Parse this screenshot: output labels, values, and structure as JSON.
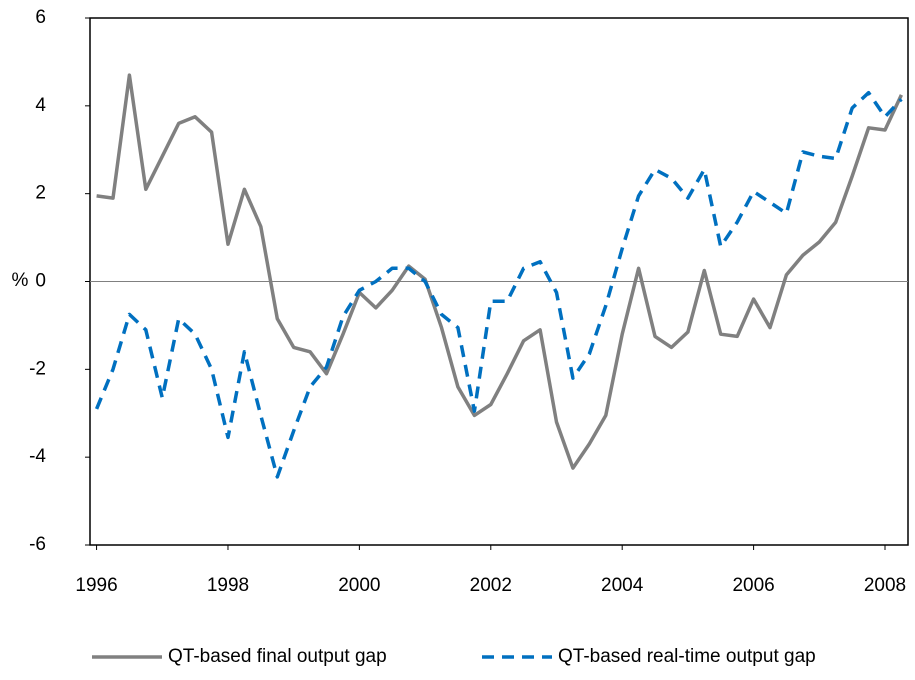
{
  "chart_data": {
    "type": "line",
    "y_label": "%",
    "x": [
      1996,
      1996.25,
      1996.5,
      1996.75,
      1997,
      1997.25,
      1997.5,
      1997.75,
      1998,
      1998.25,
      1998.5,
      1998.75,
      1999,
      1999.25,
      1999.5,
      1999.75,
      2000,
      2000.25,
      2000.5,
      2000.75,
      2001,
      2001.25,
      2001.5,
      2001.75,
      2002,
      2002.25,
      2002.5,
      2002.75,
      2003,
      2003.25,
      2003.5,
      2003.75,
      2004,
      2004.25,
      2004.5,
      2004.75,
      2005,
      2005.25,
      2005.5,
      2005.75,
      2006,
      2006.25,
      2006.5,
      2006.75,
      2007,
      2007.25,
      2007.5,
      2007.75,
      2008,
      2008.25
    ],
    "series": [
      {
        "name": "QT-based final output gap",
        "color": "#808080",
        "dash": "solid",
        "values": [
          1.95,
          1.9,
          4.7,
          2.1,
          2.85,
          3.6,
          3.75,
          3.4,
          0.85,
          2.1,
          1.25,
          -0.85,
          -1.5,
          -1.6,
          -2.1,
          -1.2,
          -0.25,
          -0.6,
          -0.2,
          0.35,
          0.05,
          -1.05,
          -2.4,
          -3.05,
          -2.8,
          -2.1,
          -1.35,
          -1.1,
          -3.2,
          -4.25,
          -3.7,
          -3.05,
          -1.2,
          0.3,
          -1.25,
          -1.5,
          -1.15,
          0.25,
          -1.2,
          -1.25,
          -0.4,
          -1.05,
          0.15,
          0.6,
          0.9,
          1.35,
          2.4,
          3.5,
          3.45,
          4.25
        ]
      },
      {
        "name": "QT-based real-time output gap",
        "color": "#0070c0",
        "dash": "dashed",
        "values": [
          -2.9,
          -2.0,
          -0.75,
          -1.1,
          -2.65,
          -0.85,
          -1.2,
          -2.0,
          -3.55,
          -1.6,
          -3.05,
          -4.45,
          -3.4,
          -2.4,
          -1.95,
          -0.8,
          -0.2,
          0.0,
          0.3,
          0.3,
          0.0,
          -0.75,
          -1.05,
          -2.95,
          -0.45,
          -0.45,
          0.3,
          0.45,
          -0.25,
          -2.2,
          -1.65,
          -0.55,
          0.75,
          1.95,
          2.55,
          2.35,
          1.9,
          2.55,
          0.8,
          1.35,
          2.05,
          1.8,
          1.55,
          2.95,
          2.85,
          2.8,
          3.95,
          4.3,
          3.75,
          4.15
        ]
      }
    ],
    "xlim": [
      1995.9,
      2008.35
    ],
    "xticks": [
      1996,
      1998,
      2000,
      2002,
      2004,
      2006,
      2008
    ],
    "ylim": [
      -6,
      6
    ],
    "yticks": [
      -6,
      -4,
      -2,
      0,
      2,
      4,
      6
    ],
    "zero_line": true,
    "legend": "bottom"
  }
}
